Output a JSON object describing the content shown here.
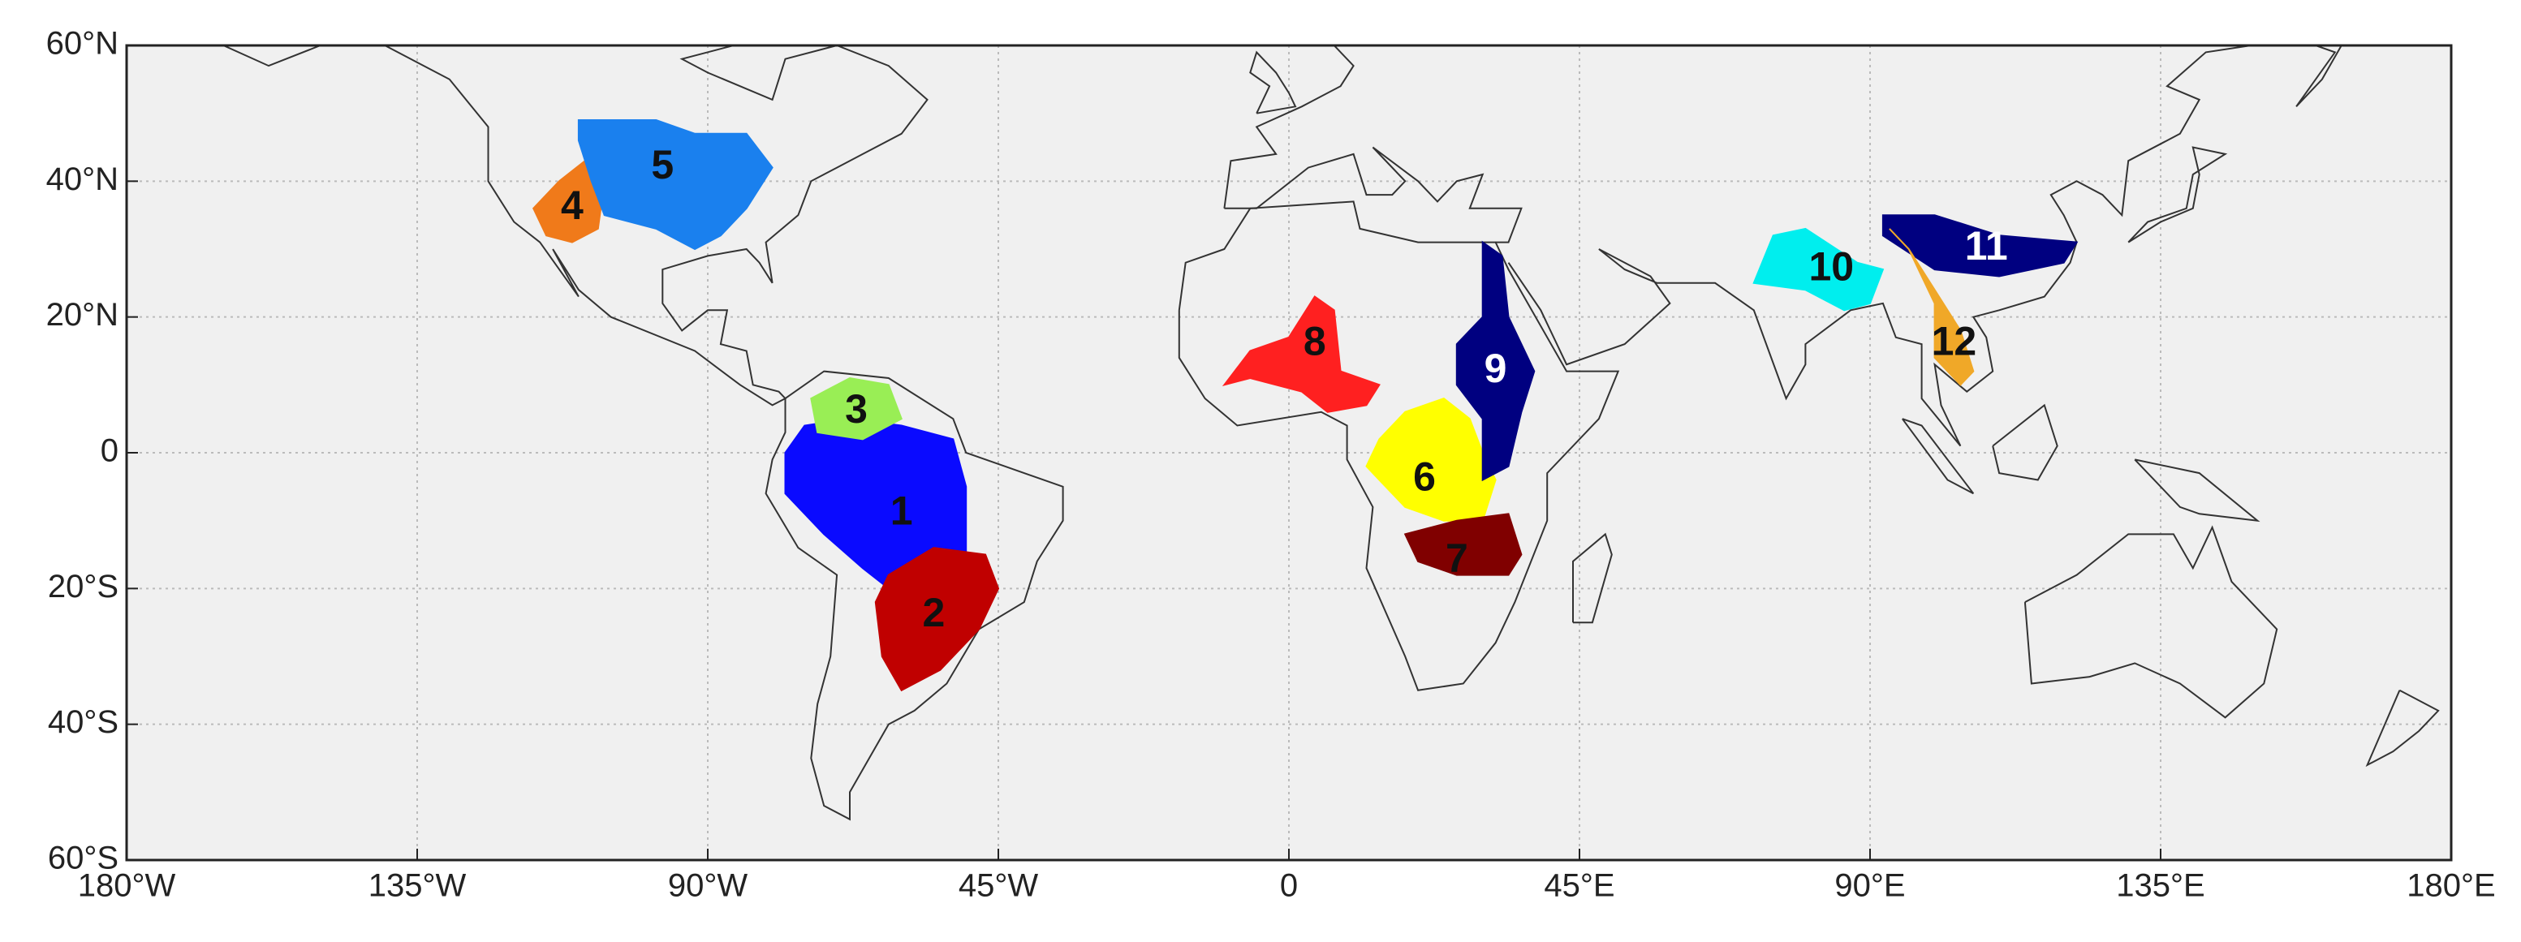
{
  "map": {
    "xticks": [
      {
        "value": -180,
        "label": "180°W"
      },
      {
        "value": -135,
        "label": "135°W"
      },
      {
        "value": -90,
        "label": "90°W"
      },
      {
        "value": -45,
        "label": "45°W"
      },
      0,
      {
        "value": 45,
        "label": "45°E"
      },
      {
        "value": 90,
        "label": "90°E"
      },
      {
        "value": 135,
        "label": "135°E"
      },
      {
        "value": 180,
        "label": "180°E"
      }
    ],
    "yticks": [
      {
        "value": -60,
        "label": "60°S"
      },
      {
        "value": -40,
        "label": "40°S"
      },
      {
        "value": -20,
        "label": "20°S"
      },
      0,
      {
        "value": 20,
        "label": "20°N"
      },
      {
        "value": 40,
        "label": "40°N"
      },
      {
        "value": 60,
        "label": "60°N"
      }
    ],
    "xlim": [
      -180,
      180
    ],
    "ylim": [
      -60,
      60
    ],
    "grid": true,
    "regions": [
      {
        "label": "1",
        "color": "#0a0aff"
      },
      {
        "label": "2",
        "color": "#c00000"
      },
      {
        "label": "3",
        "color": "#99ee55"
      },
      {
        "label": "4",
        "color": "#f07a1a"
      },
      {
        "label": "5",
        "color": "#1a80ee"
      },
      {
        "label": "6",
        "color": "#ffff00"
      },
      {
        "label": "7",
        "color": "#800000"
      },
      {
        "label": "8",
        "color": "#ff2020"
      },
      {
        "label": "9",
        "color": "#000080"
      },
      {
        "label": "10",
        "color": "#00eeee"
      },
      {
        "label": "11",
        "color": "#000080"
      },
      {
        "label": "12",
        "color": "#f0a828"
      }
    ]
  }
}
